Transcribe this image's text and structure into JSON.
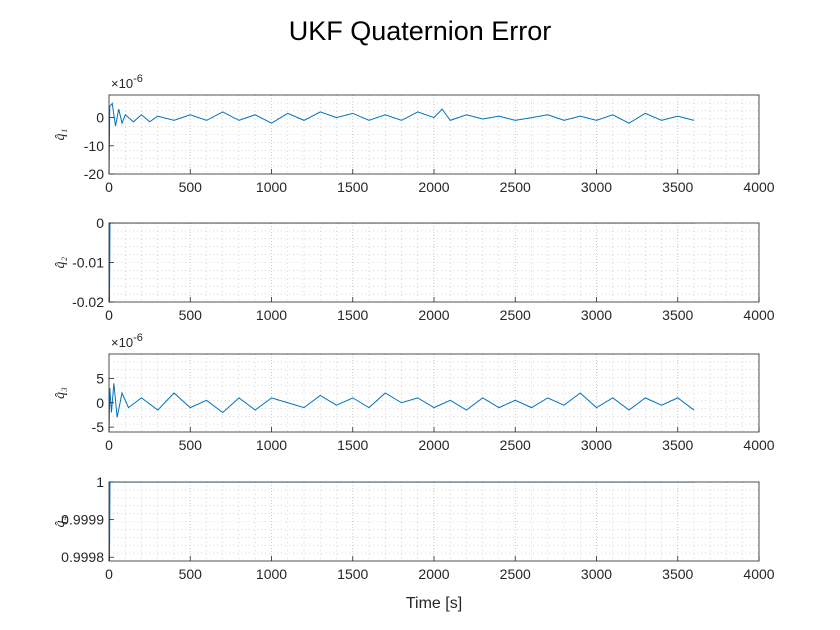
{
  "figure": {
    "title": "UKF Quaternion Error",
    "xlabel": "Time [s]"
  },
  "colors": {
    "line": "#0072BD",
    "axis": "#262626",
    "grid": "#bfbfbf"
  },
  "chart_data": [
    {
      "type": "line",
      "ylabel": "q̂₁",
      "exponent_label": "×10",
      "exponent_power": "-6",
      "xlim": [
        0,
        4000
      ],
      "ylim": [
        -20,
        8
      ],
      "xticks": [
        "0",
        "500",
        "1000",
        "1500",
        "2000",
        "2500",
        "3000",
        "3500",
        "4000"
      ],
      "yticks": [
        {
          "v": 0,
          "t": "0"
        },
        {
          "v": -10,
          "t": "-10"
        },
        {
          "v": -20,
          "t": "-20"
        }
      ],
      "grid": true,
      "series": [
        {
          "x": [
            0,
            5,
            20,
            40,
            60,
            80,
            100,
            150,
            200,
            250,
            300,
            400,
            500,
            600,
            700,
            800,
            900,
            1000,
            1100,
            1200,
            1300,
            1400,
            1500,
            1600,
            1700,
            1800,
            1900,
            2000,
            2050,
            2100,
            2200,
            2300,
            2400,
            2500,
            2600,
            2700,
            2800,
            2900,
            3000,
            3100,
            3200,
            3300,
            3400,
            3500,
            3600
          ],
          "y": [
            -20,
            4,
            5,
            -3,
            3,
            -2,
            1,
            -1.5,
            1,
            -1.5,
            0.5,
            -1,
            1,
            -1,
            2,
            -1,
            1,
            -2,
            1.5,
            -1,
            2,
            0,
            1.5,
            -1,
            1,
            -1,
            2,
            0,
            3,
            -1,
            1,
            -0.5,
            0.5,
            -1,
            0,
            1,
            -1,
            0.5,
            -1,
            1,
            -2,
            1.5,
            -1,
            0.5,
            -1
          ]
        }
      ]
    },
    {
      "type": "line",
      "ylabel": "q̂₂",
      "exponent_label": "",
      "exponent_power": "",
      "xlim": [
        0,
        4000
      ],
      "ylim": [
        -0.02,
        0
      ],
      "xticks": [
        "0",
        "500",
        "1000",
        "1500",
        "2000",
        "2500",
        "3000",
        "3500",
        "4000"
      ],
      "yticks": [
        {
          "v": 0,
          "t": "0"
        },
        {
          "v": -0.01,
          "t": "-0.01"
        },
        {
          "v": -0.02,
          "t": "-0.02"
        }
      ],
      "grid": true,
      "series": [
        {
          "x": [
            0,
            3,
            6,
            3600
          ],
          "y": [
            -0.02,
            -0.02,
            0,
            0
          ]
        }
      ]
    },
    {
      "type": "line",
      "ylabel": "q̂₃",
      "exponent_label": "×10",
      "exponent_power": "-6",
      "xlim": [
        0,
        4000
      ],
      "ylim": [
        -6,
        10
      ],
      "xticks": [
        "0",
        "500",
        "1000",
        "1500",
        "2000",
        "2500",
        "3000",
        "3500",
        "4000"
      ],
      "yticks": [
        {
          "v": 5,
          "t": "5"
        },
        {
          "v": 0,
          "t": "0"
        },
        {
          "v": -5,
          "t": "-5"
        }
      ],
      "grid": true,
      "series": [
        {
          "x": [
            0,
            5,
            15,
            30,
            50,
            80,
            120,
            200,
            300,
            400,
            500,
            600,
            700,
            800,
            900,
            1000,
            1100,
            1200,
            1300,
            1400,
            1500,
            1600,
            1700,
            1800,
            1900,
            2000,
            2100,
            2200,
            2300,
            2400,
            2500,
            2600,
            2700,
            2800,
            2900,
            3000,
            3100,
            3200,
            3300,
            3400,
            3500,
            3600
          ],
          "y": [
            -6,
            3,
            -2,
            4,
            -3,
            2,
            -1,
            1,
            -1.5,
            2,
            -1,
            0.5,
            -2,
            1,
            -1.5,
            1,
            0,
            -1,
            1.5,
            -0.5,
            1,
            -1,
            2,
            0,
            1,
            -1,
            0.5,
            -1.5,
            1,
            -1,
            0.5,
            -1,
            1,
            -0.5,
            2,
            -1,
            1,
            -1.5,
            1,
            -0.5,
            1,
            -1.5
          ]
        }
      ]
    },
    {
      "type": "line",
      "ylabel": "q̂₄",
      "exponent_label": "",
      "exponent_power": "",
      "xlim": [
        0,
        4000
      ],
      "ylim": [
        0.99979,
        1
      ],
      "xticks": [
        "0",
        "500",
        "1000",
        "1500",
        "2000",
        "2500",
        "3000",
        "3500",
        "4000"
      ],
      "yticks": [
        {
          "v": 1,
          "t": "1"
        },
        {
          "v": 0.9999,
          "t": "0.9999"
        },
        {
          "v": 0.9998,
          "t": "0.9998"
        }
      ],
      "grid": true,
      "series": [
        {
          "x": [
            0,
            3,
            6,
            3600
          ],
          "y": [
            0.99979,
            0.99979,
            1,
            1
          ]
        }
      ]
    }
  ]
}
